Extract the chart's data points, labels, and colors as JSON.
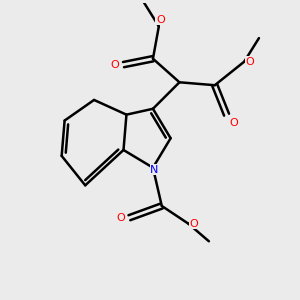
{
  "bg_color": "#ebebeb",
  "bond_color": "#000000",
  "nitrogen_color": "#0000ff",
  "oxygen_color": "#ff0000",
  "line_width": 1.8,
  "fig_width": 3.0,
  "fig_height": 3.0,
  "xlim": [
    0,
    10
  ],
  "ylim": [
    0,
    10
  ]
}
